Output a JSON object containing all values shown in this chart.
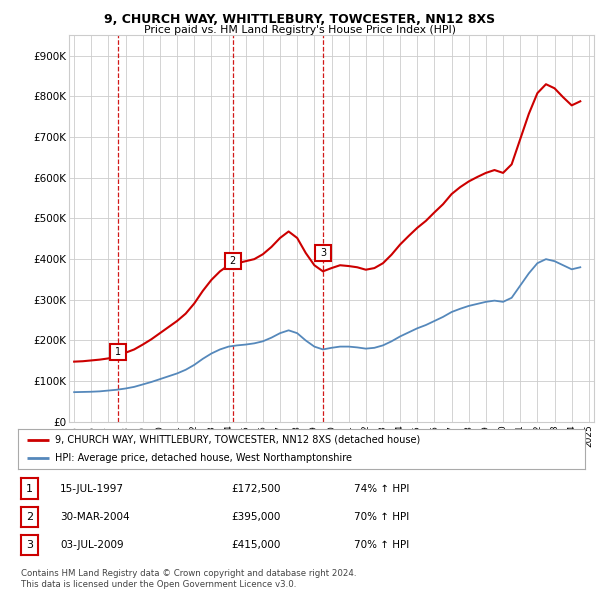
{
  "title": "9, CHURCH WAY, WHITTLEBURY, TOWCESTER, NN12 8XS",
  "subtitle": "Price paid vs. HM Land Registry's House Price Index (HPI)",
  "ylim": [
    0,
    950000
  ],
  "yticks": [
    0,
    100000,
    200000,
    300000,
    400000,
    500000,
    600000,
    700000,
    800000,
    900000
  ],
  "ytick_labels": [
    "£0",
    "£100K",
    "£200K",
    "£300K",
    "£400K",
    "£500K",
    "£600K",
    "£700K",
    "£800K",
    "£900K"
  ],
  "red_color": "#cc0000",
  "blue_color": "#5588bb",
  "sale_dates": [
    1997.54,
    2004.24,
    2009.5
  ],
  "sale_prices": [
    172500,
    395000,
    415000
  ],
  "sale_labels": [
    "1",
    "2",
    "3"
  ],
  "vline_dates": [
    1997.54,
    2004.24,
    2009.5
  ],
  "legend_red": "9, CHURCH WAY, WHITTLEBURY, TOWCESTER, NN12 8XS (detached house)",
  "legend_blue": "HPI: Average price, detached house, West Northamptonshire",
  "table_rows": [
    [
      "1",
      "15-JUL-1997",
      "£172,500",
      "74% ↑ HPI"
    ],
    [
      "2",
      "30-MAR-2004",
      "£395,000",
      "70% ↑ HPI"
    ],
    [
      "3",
      "03-JUL-2009",
      "£415,000",
      "70% ↑ HPI"
    ]
  ],
  "footer": "Contains HM Land Registry data © Crown copyright and database right 2024.\nThis data is licensed under the Open Government Licence v3.0.",
  "background_color": "#ffffff",
  "grid_color": "#cccccc",
  "hpi_x": [
    1995.0,
    1995.5,
    1996.0,
    1996.5,
    1997.0,
    1997.5,
    1998.0,
    1998.5,
    1999.0,
    1999.5,
    2000.0,
    2000.5,
    2001.0,
    2001.5,
    2002.0,
    2002.5,
    2003.0,
    2003.5,
    2004.0,
    2004.5,
    2005.0,
    2005.5,
    2006.0,
    2006.5,
    2007.0,
    2007.5,
    2008.0,
    2008.5,
    2009.0,
    2009.5,
    2010.0,
    2010.5,
    2011.0,
    2011.5,
    2012.0,
    2012.5,
    2013.0,
    2013.5,
    2014.0,
    2014.5,
    2015.0,
    2015.5,
    2016.0,
    2016.5,
    2017.0,
    2017.5,
    2018.0,
    2018.5,
    2019.0,
    2019.5,
    2020.0,
    2020.5,
    2021.0,
    2021.5,
    2022.0,
    2022.5,
    2023.0,
    2023.5,
    2024.0,
    2024.5
  ],
  "hpi_y": [
    73000,
    73500,
    74000,
    75000,
    77000,
    79000,
    82000,
    86000,
    92000,
    98000,
    105000,
    112000,
    119000,
    128000,
    140000,
    155000,
    168000,
    178000,
    185000,
    188000,
    190000,
    193000,
    198000,
    207000,
    218000,
    225000,
    218000,
    200000,
    185000,
    178000,
    182000,
    185000,
    185000,
    183000,
    180000,
    182000,
    188000,
    198000,
    210000,
    220000,
    230000,
    238000,
    248000,
    258000,
    270000,
    278000,
    285000,
    290000,
    295000,
    298000,
    295000,
    305000,
    335000,
    365000,
    390000,
    400000,
    395000,
    385000,
    375000,
    380000
  ],
  "red_x": [
    1995.0,
    1995.5,
    1996.0,
    1996.5,
    1997.0,
    1997.5,
    1998.0,
    1998.5,
    1999.0,
    1999.5,
    2000.0,
    2000.5,
    2001.0,
    2001.5,
    2002.0,
    2002.5,
    2003.0,
    2003.5,
    2004.0,
    2004.5,
    2005.0,
    2005.5,
    2006.0,
    2006.5,
    2007.0,
    2007.5,
    2008.0,
    2008.5,
    2009.0,
    2009.5,
    2010.0,
    2010.5,
    2011.0,
    2011.5,
    2012.0,
    2012.5,
    2013.0,
    2013.5,
    2014.0,
    2014.5,
    2015.0,
    2015.5,
    2016.0,
    2016.5,
    2017.0,
    2017.5,
    2018.0,
    2018.5,
    2019.0,
    2019.5,
    2020.0,
    2020.5,
    2021.0,
    2021.5,
    2022.0,
    2022.5,
    2023.0,
    2023.5,
    2024.0,
    2024.5
  ],
  "red_y": [
    148000,
    149000,
    151000,
    153000,
    156000,
    163000,
    170000,
    178000,
    190000,
    203000,
    218000,
    233000,
    248000,
    266000,
    291000,
    322000,
    349000,
    370000,
    385000,
    390000,
    395000,
    400000,
    412000,
    430000,
    452000,
    468000,
    452000,
    415000,
    385000,
    370000,
    378000,
    385000,
    383000,
    380000,
    374000,
    378000,
    390000,
    411000,
    436000,
    457000,
    477000,
    494000,
    515000,
    535000,
    560000,
    577000,
    591000,
    602000,
    612000,
    619000,
    612000,
    633000,
    695000,
    757000,
    808000,
    830000,
    820000,
    798000,
    778000,
    788000
  ]
}
